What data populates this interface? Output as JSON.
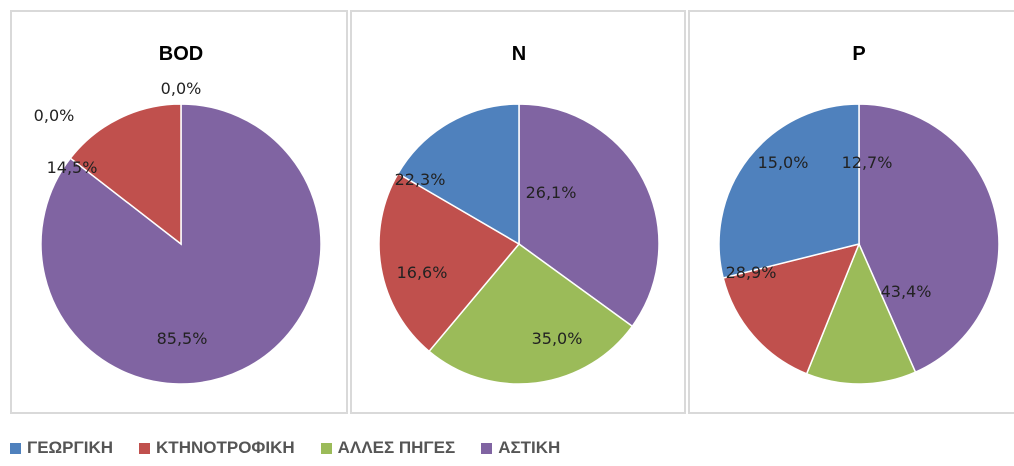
{
  "colors": {
    "ΓΕΩΡΓΙΚΗ": "#4f81bd",
    "ΚΤΗΝΟΤΡΟΦΙΚΗ": "#c0504d",
    "ΑΛΛΕΣ ΠΗΓΕΣ": "#9bbb59",
    "ΑΣΤΙΚΗ": "#8064a2"
  },
  "legend": [
    "ΓΕΩΡΓΙΚΗ",
    "ΚΤΗΝΟΤΡΟΦΙΚΗ",
    "ΑΛΛΕΣ ΠΗΓΕΣ",
    "ΑΣΤΙΚΗ"
  ],
  "chart_data": [
    {
      "type": "pie",
      "title": "BOD",
      "legend_position": "bottom",
      "slices": [
        {
          "category": "ΓΕΩΡΓΙΚΗ",
          "value": 0.0,
          "label": "0,0%"
        },
        {
          "category": "ΚΤΗΝΟΤΡΟΦΙΚΗ",
          "value": 14.5,
          "label": "14,5%"
        },
        {
          "category": "ΑΛΛΕΣ ΠΗΓΕΣ",
          "value": 0.0,
          "label": "0,0%"
        },
        {
          "category": "ΑΣΤΙΚΗ",
          "value": 85.5,
          "label": "85,5%"
        }
      ]
    },
    {
      "type": "pie",
      "title": "N",
      "legend_position": "bottom",
      "slices": [
        {
          "category": "ΓΕΩΡΓΙΚΗ",
          "value": 16.6,
          "label": "16,6%"
        },
        {
          "category": "ΚΤΗΝΟΤΡΟΦΙΚΗ",
          "value": 22.3,
          "label": "22,3%"
        },
        {
          "category": "ΑΛΛΕΣ ΠΗΓΕΣ",
          "value": 26.1,
          "label": "26,1%"
        },
        {
          "category": "ΑΣΤΙΚΗ",
          "value": 35.0,
          "label": "35,0%"
        }
      ]
    },
    {
      "type": "pie",
      "title": "P",
      "legend_position": "bottom",
      "slices": [
        {
          "category": "ΓΕΩΡΓΙΚΗ",
          "value": 28.9,
          "label": "28,9%"
        },
        {
          "category": "ΚΤΗΝΟΤΡΟΦΙΚΗ",
          "value": 15.0,
          "label": "15,0%"
        },
        {
          "category": "ΑΛΛΕΣ ΠΗΓΕΣ",
          "value": 12.7,
          "label": "12,7%"
        },
        {
          "category": "ΑΣΤΙΚΗ",
          "value": 43.4,
          "label": "43,4%"
        }
      ]
    }
  ]
}
